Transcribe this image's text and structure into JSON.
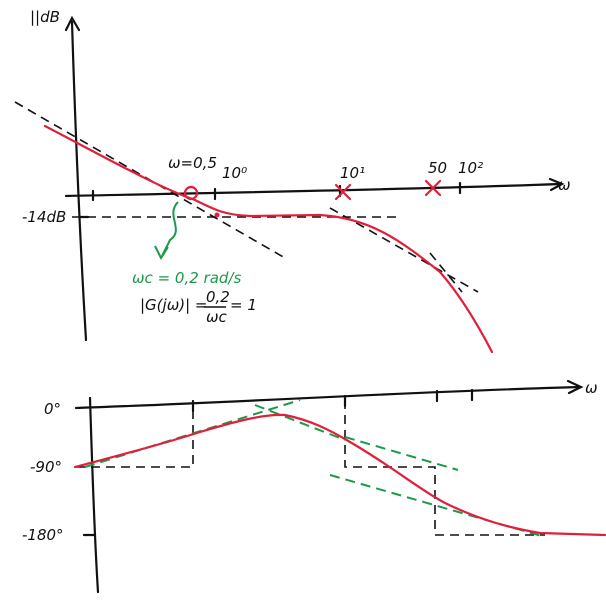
{
  "magnitude_plot": {
    "y_label": "||dB",
    "x_label": "ω",
    "level_label": "-14dB",
    "tick_labels": [
      "ω=0,5",
      "10⁰",
      "10¹",
      "50",
      "10²"
    ],
    "crossover": {
      "label": "ωc = 0,2 rad/s",
      "equation_left": "|G(jω)| =",
      "numerator": "0,2",
      "denominator": "ωc",
      "equation_right": "= 1"
    }
  },
  "phase_plot": {
    "x_label": "ω",
    "y_labels": [
      "0°",
      "-90°",
      "-180°"
    ]
  }
}
